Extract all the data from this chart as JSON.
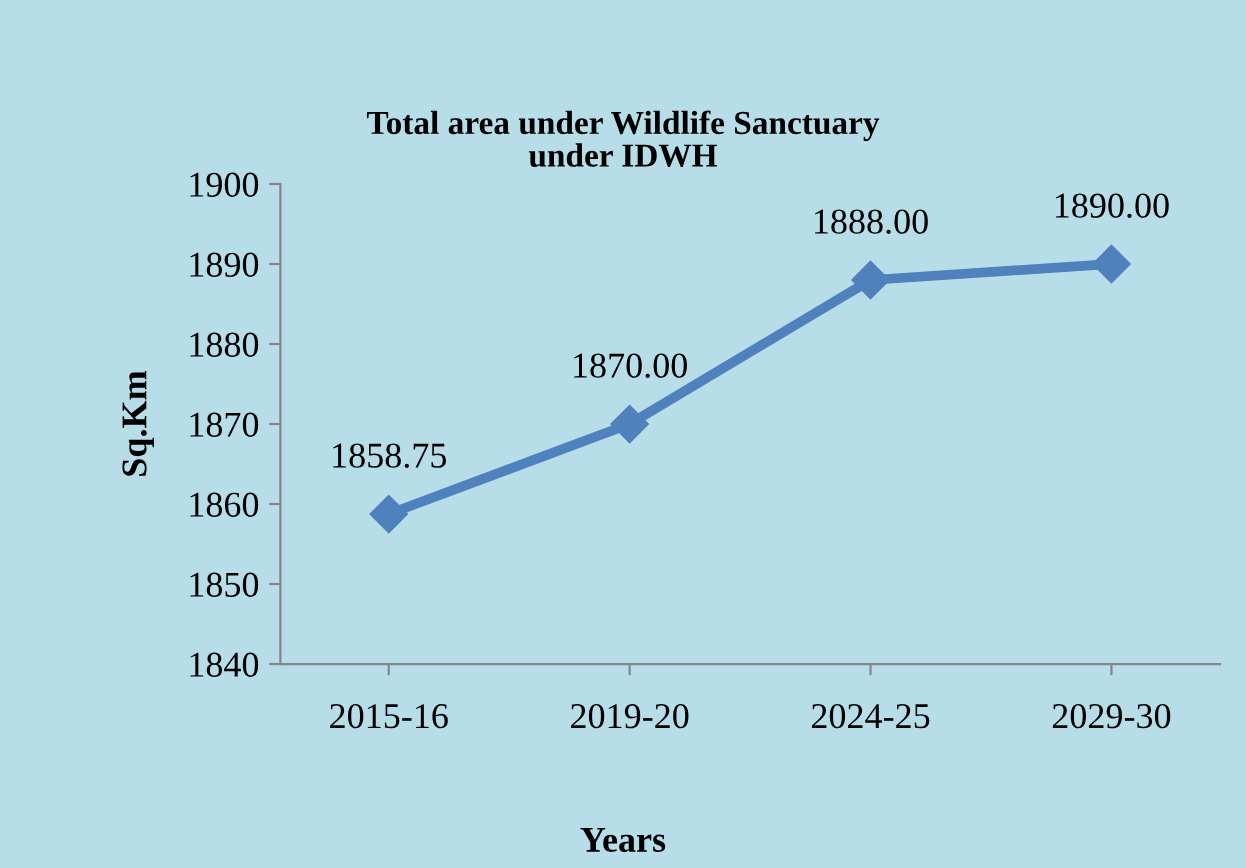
{
  "chart_data": {
    "type": "line",
    "title": "Total area under Wildlife Sanctuary\nunder IDWH",
    "xlabel": "Years",
    "ylabel": "Sq.Km",
    "categories": [
      "2015-16",
      "2019-20",
      "2024-25",
      "2029-30"
    ],
    "series": [
      {
        "color": "#4f81bd",
        "values": [
          1858.75,
          1870,
          1888,
          1890
        ],
        "value_labels": [
          "1858.75",
          "1870.00",
          "1888.00",
          "1890.00"
        ]
      }
    ],
    "ylim": [
      1840,
      1900
    ],
    "yticks": [
      1840,
      1850,
      1860,
      1870,
      1880,
      1890,
      1900
    ],
    "grid": false,
    "legend": false,
    "marker": "diamond",
    "line_style": "solid"
  }
}
